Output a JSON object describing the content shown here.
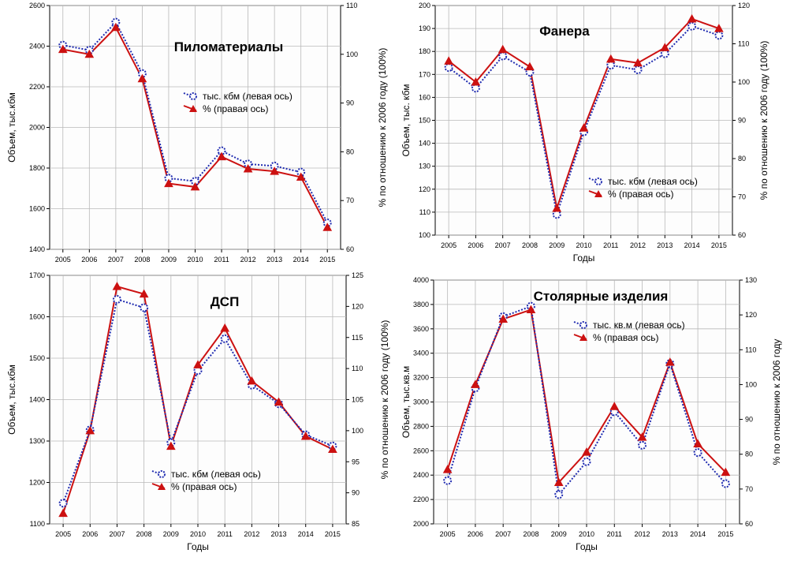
{
  "colors": {
    "left_series": "#1f2bb0",
    "right_series": "#cc1111",
    "background": "#ffffff",
    "plot_bg": "#fdfdfd"
  },
  "chart_data": [
    {
      "type": "line",
      "title": "Пиломатериалы",
      "xlabel": "",
      "ylabel": "Объем, тыс.кбм",
      "y2label": "% по отношению к 2006 году (100%)",
      "categories": [
        "2005",
        "2006",
        "2007",
        "2008",
        "2009",
        "2010",
        "2011",
        "2012",
        "2013",
        "2014",
        "2015"
      ],
      "ylim": [
        1400,
        2600
      ],
      "yticks": [
        1400,
        1600,
        1800,
        2000,
        2200,
        2400,
        2600
      ],
      "y2lim": [
        60,
        110
      ],
      "y2ticks": [
        60,
        70,
        80,
        90,
        100,
        110
      ],
      "legend_position": "right-center",
      "grid": true,
      "series": [
        {
          "name": "тыс. кбм (левая ось)",
          "axis": "left",
          "marker": "circle",
          "style": "dotted",
          "values": [
            2405,
            2380,
            2518,
            2265,
            1750,
            1735,
            1885,
            1820,
            1810,
            1780,
            1530
          ]
        },
        {
          "name": "% (правая ось)",
          "axis": "right",
          "marker": "triangle",
          "style": "solid",
          "values": [
            101,
            100,
            105.5,
            95,
            73.5,
            72.8,
            79,
            76.5,
            76,
            74.8,
            64.5
          ]
        }
      ]
    },
    {
      "type": "line",
      "title": "Фанера",
      "xlabel": "Годы",
      "ylabel": "Объем, тыс. кбм",
      "y2label": "% по отношению к 2006 году (100%)",
      "categories": [
        "2005",
        "2006",
        "2007",
        "2008",
        "2009",
        "2010",
        "2011",
        "2012",
        "2013",
        "2014",
        "2015"
      ],
      "ylim": [
        100,
        200
      ],
      "yticks": [
        100,
        110,
        120,
        130,
        140,
        150,
        160,
        170,
        180,
        190,
        200
      ],
      "y2lim": [
        60,
        120
      ],
      "y2ticks": [
        60,
        70,
        80,
        90,
        100,
        110,
        120
      ],
      "legend_position": "bottom-right",
      "grid": true,
      "series": [
        {
          "name": "тыс. кбм (левая ось)",
          "axis": "left",
          "marker": "circle",
          "style": "dotted",
          "values": [
            173,
            164,
            178,
            171,
            109,
            145,
            174,
            172,
            179,
            191,
            187
          ]
        },
        {
          "name": "% (правая ось)",
          "axis": "right",
          "marker": "triangle",
          "style": "solid",
          "values": [
            105.5,
            100,
            108.5,
            104,
            67,
            88,
            106,
            105,
            109,
            116.5,
            114
          ]
        }
      ]
    },
    {
      "type": "line",
      "title": "ДСП",
      "xlabel": "Годы",
      "ylabel": "Объем, тыс.кбм",
      "y2label": "% по отношению к 2006 году (100%)",
      "categories": [
        "2005",
        "2006",
        "2007",
        "2008",
        "2009",
        "2010",
        "2011",
        "2012",
        "2013",
        "2014",
        "2015"
      ],
      "ylim": [
        1100,
        1700
      ],
      "yticks": [
        1100,
        1200,
        1300,
        1400,
        1500,
        1600,
        1700
      ],
      "y2lim": [
        85,
        125
      ],
      "y2ticks": [
        85,
        90,
        95,
        100,
        105,
        110,
        115,
        120,
        125
      ],
      "legend_position": "bottom-center",
      "grid": true,
      "series": [
        {
          "name": "тыс. кбм (левая ось)",
          "axis": "left",
          "marker": "circle",
          "style": "dotted",
          "values": [
            1150,
            1327,
            1642,
            1622,
            1296,
            1470,
            1547,
            1435,
            1390,
            1315,
            1288
          ]
        },
        {
          "name": "% (правая ось)",
          "axis": "right",
          "marker": "triangle",
          "style": "solid",
          "values": [
            86.7,
            100,
            123.2,
            122,
            97.5,
            110.6,
            116.5,
            108,
            104.6,
            99.1,
            97
          ]
        }
      ]
    },
    {
      "type": "line",
      "title": "Столярные изделия",
      "xlabel": "Годы",
      "ylabel": "Объем, тыс.кв.м",
      "y2label": "% по отношению к 2006 году",
      "categories": [
        "2005",
        "2006",
        "2007",
        "2008",
        "2009",
        "2010",
        "2011",
        "2012",
        "2013",
        "2014",
        "2015"
      ],
      "ylim": [
        2000,
        4000
      ],
      "yticks": [
        2000,
        2200,
        2400,
        2600,
        2800,
        3000,
        3200,
        3400,
        3600,
        3800,
        4000
      ],
      "y2lim": [
        60,
        130
      ],
      "y2ticks": [
        60,
        70,
        80,
        90,
        100,
        110,
        120,
        130
      ],
      "legend_position": "top-right",
      "grid": true,
      "series": [
        {
          "name": "тыс. кв.м (левая ось)",
          "axis": "left",
          "marker": "circle",
          "style": "dotted",
          "values": [
            2355,
            3115,
            3700,
            3785,
            2240,
            2510,
            2920,
            2645,
            3315,
            2585,
            2330
          ]
        },
        {
          "name": "% (правая ось)",
          "axis": "right",
          "marker": "triangle",
          "style": "solid",
          "values": [
            75.6,
            100,
            118.8,
            121.5,
            71.9,
            80.6,
            93.7,
            84.9,
            106.4,
            83,
            74.8
          ]
        }
      ]
    }
  ]
}
